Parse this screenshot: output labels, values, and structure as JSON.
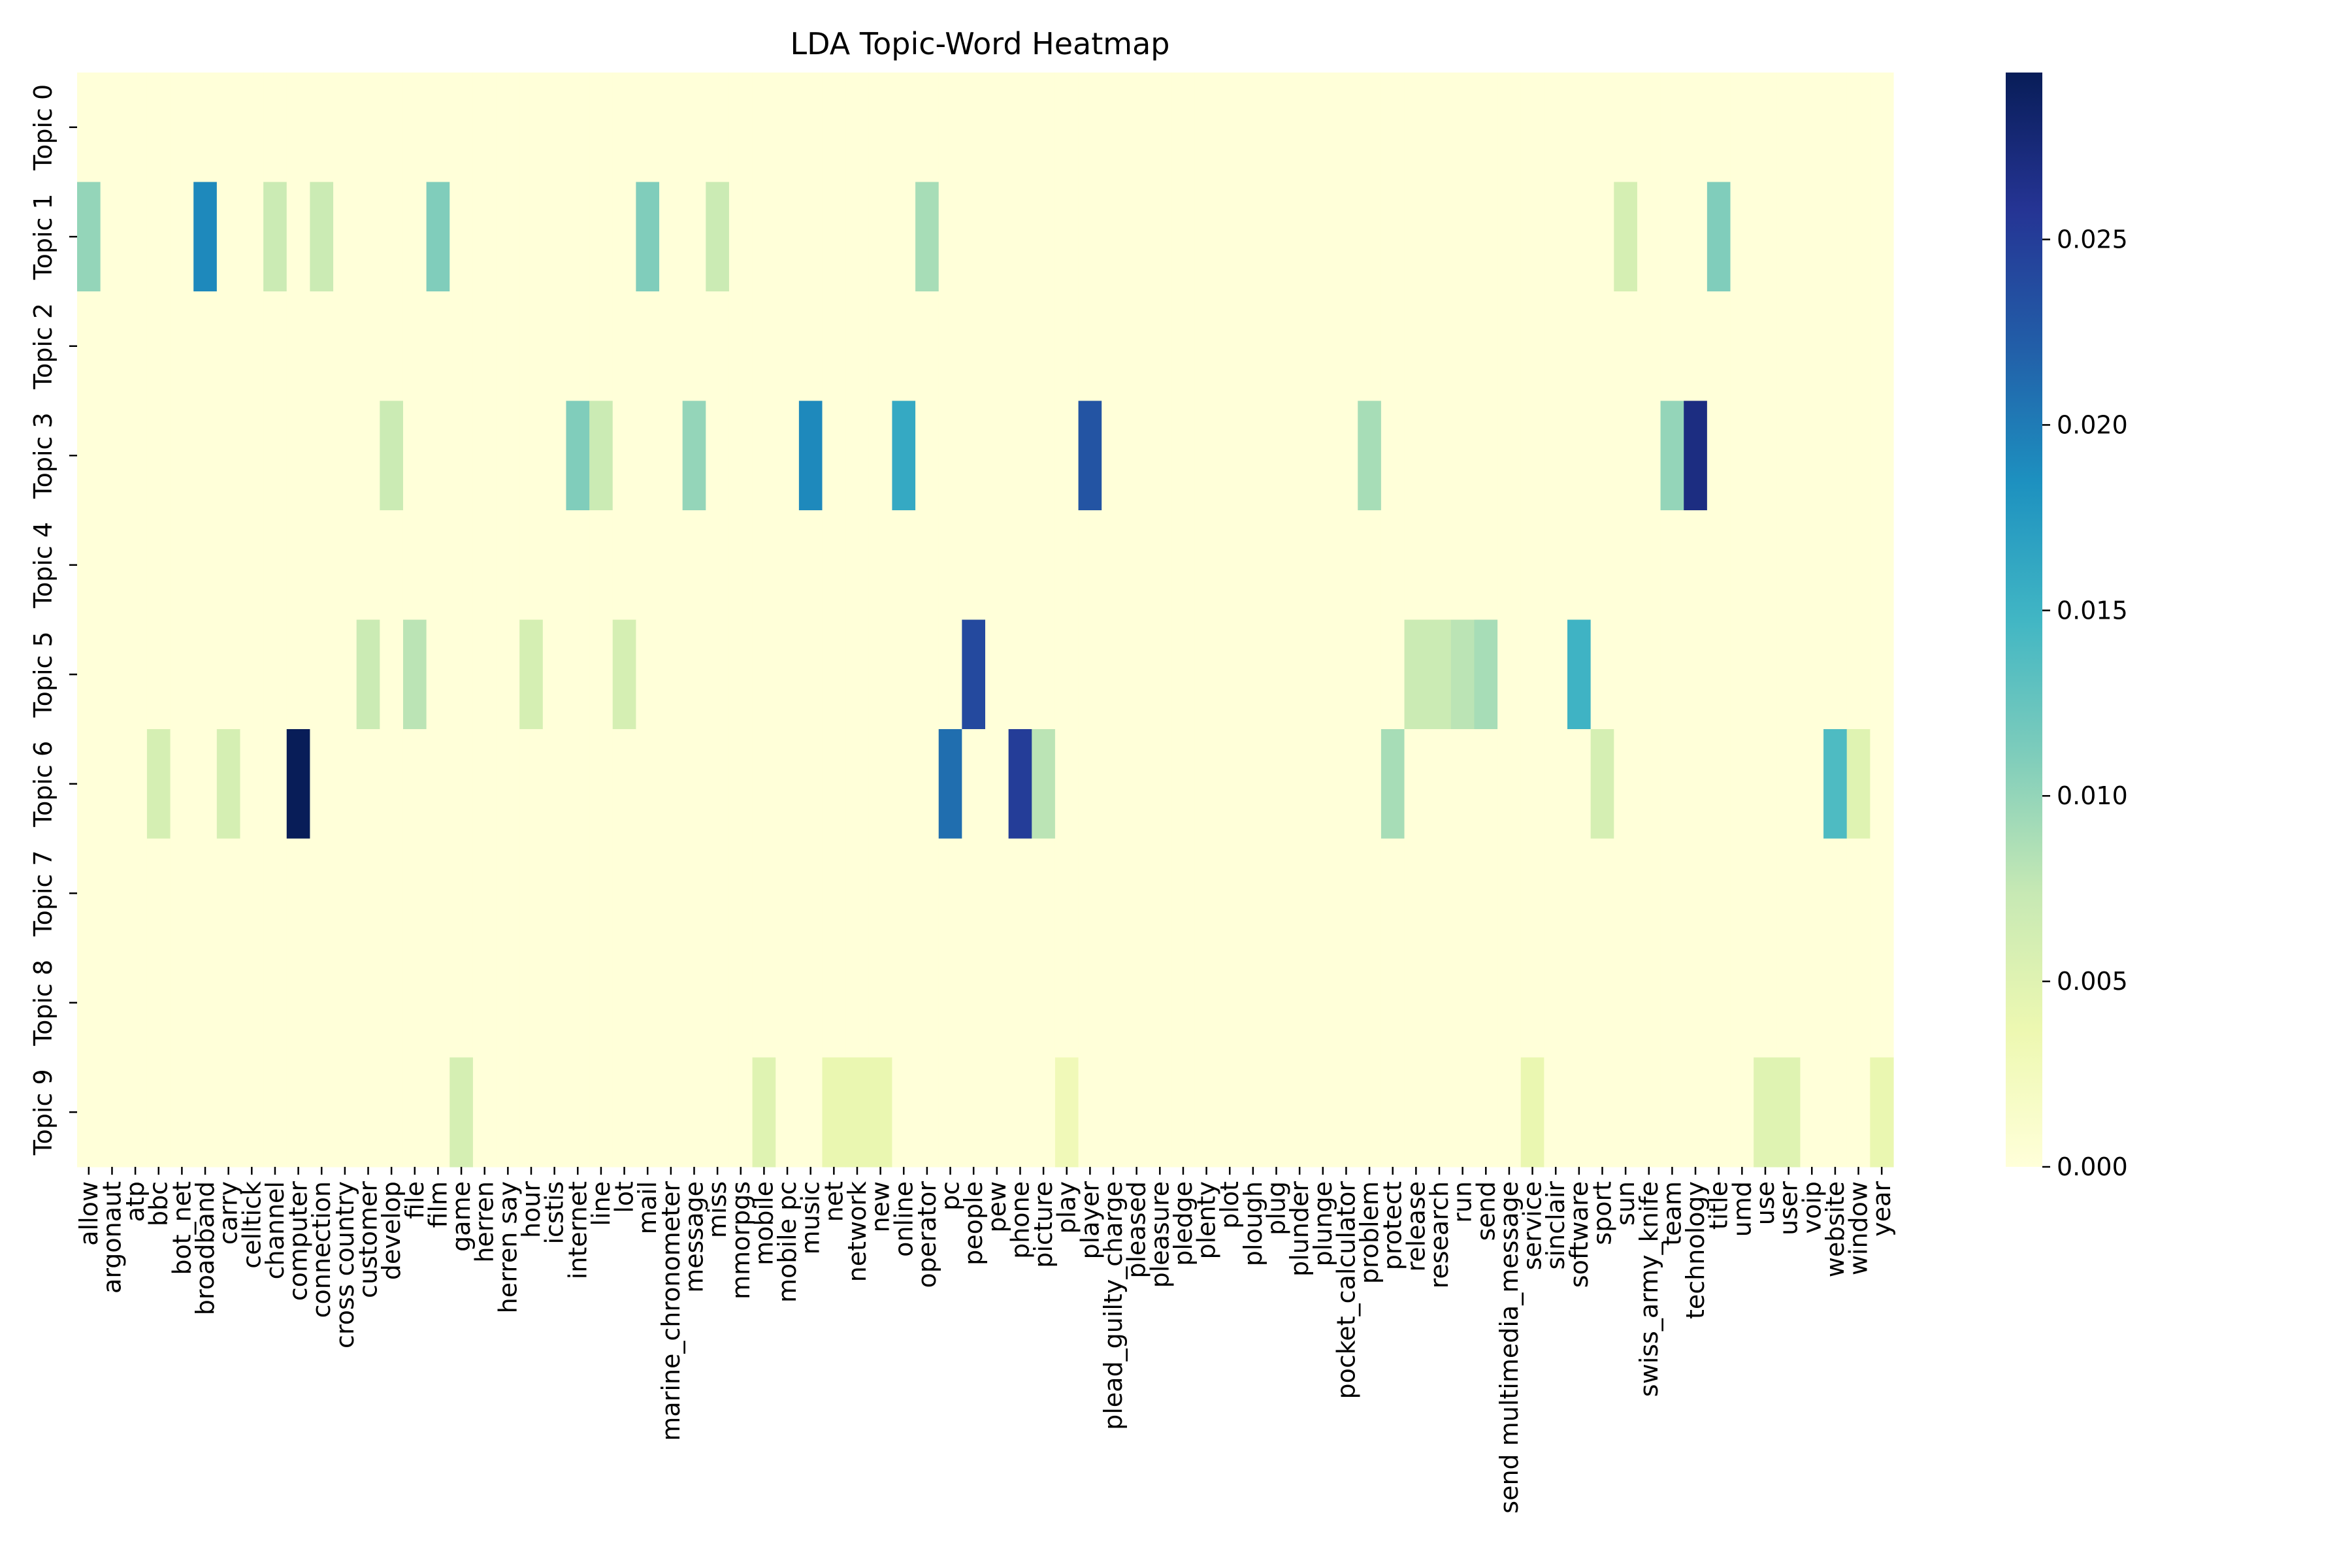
{
  "chart_data": {
    "type": "heatmap",
    "title": "LDA Topic-Word Heatmap",
    "xlabel": "",
    "ylabel": "",
    "topics": [
      "Topic 0",
      "Topic 1",
      "Topic 2",
      "Topic 3",
      "Topic 4",
      "Topic 5",
      "Topic 6",
      "Topic 7",
      "Topic 8",
      "Topic 9"
    ],
    "words": [
      "allow",
      "argonaut",
      "atp",
      "bbc",
      "bot_net",
      "broadband",
      "carry",
      "celltick",
      "channel",
      "computer",
      "connection",
      "cross country",
      "customer",
      "develop",
      "file",
      "film",
      "game",
      "herren",
      "herren say",
      "hour",
      "icstis",
      "internet",
      "line",
      "lot",
      "mail",
      "marine_chronometer",
      "message",
      "miss",
      "mmorpgs",
      "mobile",
      "mobile pc",
      "music",
      "net",
      "network",
      "new",
      "online",
      "operator",
      "pc",
      "people",
      "pew",
      "phone",
      "picture",
      "play",
      "player",
      "plead_guilty_charge",
      "pleased",
      "pleasure",
      "pledge",
      "plenty",
      "plot",
      "plough",
      "plug",
      "plunder",
      "plunge",
      "pocket_calculator",
      "problem",
      "protect",
      "release",
      "research",
      "run",
      "send",
      "send multimedia_message",
      "service",
      "sinclair",
      "software",
      "sport",
      "sun",
      "swiss_army_knife",
      "team",
      "technology",
      "title",
      "umd",
      "use",
      "user",
      "voip",
      "website",
      "window",
      "year"
    ],
    "values": [
      [
        0,
        0,
        0,
        0,
        0,
        0,
        0,
        0,
        0,
        0,
        0,
        0,
        0,
        0,
        0,
        0,
        0,
        0,
        0,
        0,
        0,
        0,
        0,
        0,
        0,
        0,
        0,
        0,
        0,
        0,
        0,
        0,
        0,
        0,
        0,
        0,
        0,
        0,
        0,
        0,
        0,
        0,
        0,
        0,
        0,
        0,
        0,
        0,
        0,
        0,
        0,
        0,
        0,
        0,
        0,
        0,
        0,
        0,
        0,
        0,
        0,
        0,
        0,
        0,
        0,
        0,
        0,
        0,
        0,
        0,
        0,
        0,
        0,
        0,
        0,
        0,
        0,
        0
      ],
      [
        0.01,
        0,
        0,
        0,
        0,
        0.019,
        0,
        0,
        0.007,
        0,
        0.007,
        0,
        0,
        0,
        0,
        0.011,
        0,
        0,
        0,
        0,
        0,
        0,
        0,
        0,
        0.011,
        0,
        0,
        0.007,
        0,
        0,
        0,
        0,
        0,
        0,
        0,
        0,
        0.009,
        0,
        0,
        0,
        0,
        0,
        0,
        0,
        0,
        0,
        0,
        0,
        0,
        0,
        0,
        0,
        0,
        0,
        0,
        0,
        0,
        0,
        0,
        0,
        0,
        0,
        0,
        0,
        0,
        0,
        0.006,
        0,
        0,
        0,
        0.011,
        0,
        0,
        0,
        0,
        0,
        0,
        0
      ],
      [
        0,
        0,
        0,
        0,
        0,
        0,
        0,
        0,
        0,
        0,
        0,
        0,
        0,
        0,
        0,
        0,
        0,
        0,
        0,
        0,
        0,
        0,
        0,
        0,
        0,
        0,
        0,
        0,
        0,
        0,
        0,
        0,
        0,
        0,
        0,
        0,
        0,
        0,
        0,
        0,
        0,
        0,
        0,
        0,
        0,
        0,
        0,
        0,
        0,
        0,
        0,
        0,
        0,
        0,
        0,
        0,
        0,
        0,
        0,
        0,
        0,
        0,
        0,
        0,
        0,
        0,
        0,
        0,
        0,
        0,
        0,
        0,
        0,
        0,
        0,
        0,
        0,
        0
      ],
      [
        0,
        0,
        0,
        0,
        0,
        0,
        0,
        0,
        0,
        0,
        0,
        0,
        0,
        0.007,
        0,
        0,
        0,
        0,
        0,
        0,
        0,
        0.011,
        0.007,
        0,
        0,
        0,
        0.01,
        0,
        0,
        0,
        0,
        0.019,
        0,
        0,
        0,
        0.016,
        0,
        0,
        0,
        0,
        0,
        0,
        0,
        0.023,
        0,
        0,
        0,
        0,
        0,
        0,
        0,
        0,
        0,
        0,
        0,
        0.009,
        0,
        0,
        0,
        0,
        0,
        0,
        0,
        0,
        0,
        0,
        0,
        0,
        0.01,
        0.027,
        0,
        0,
        0,
        0,
        0,
        0,
        0,
        0
      ],
      [
        0,
        0,
        0,
        0,
        0,
        0,
        0,
        0,
        0,
        0,
        0,
        0,
        0,
        0,
        0,
        0,
        0,
        0,
        0,
        0,
        0,
        0,
        0,
        0,
        0,
        0,
        0,
        0,
        0,
        0,
        0,
        0,
        0,
        0,
        0,
        0,
        0,
        0,
        0,
        0,
        0,
        0,
        0,
        0,
        0,
        0,
        0,
        0,
        0,
        0,
        0,
        0,
        0,
        0,
        0,
        0,
        0,
        0,
        0,
        0,
        0,
        0,
        0,
        0,
        0,
        0,
        0,
        0,
        0,
        0,
        0,
        0,
        0,
        0,
        0,
        0,
        0,
        0
      ],
      [
        0,
        0,
        0,
        0,
        0,
        0,
        0,
        0,
        0,
        0,
        0,
        0,
        0.007,
        0,
        0.008,
        0,
        0,
        0,
        0,
        0.006,
        0,
        0,
        0,
        0.006,
        0,
        0,
        0,
        0,
        0,
        0,
        0,
        0,
        0,
        0,
        0,
        0,
        0,
        0,
        0.024,
        0,
        0,
        0,
        0,
        0,
        0,
        0,
        0,
        0,
        0,
        0,
        0,
        0,
        0,
        0,
        0,
        0,
        0,
        0.007,
        0.007,
        0.008,
        0.009,
        0,
        0,
        0,
        0.015,
        0,
        0,
        0,
        0,
        0,
        0,
        0,
        0,
        0,
        0,
        0,
        0,
        0
      ],
      [
        0,
        0,
        0,
        0.006,
        0,
        0,
        0.006,
        0,
        0,
        0.03,
        0,
        0,
        0,
        0,
        0,
        0,
        0,
        0,
        0,
        0,
        0,
        0,
        0,
        0,
        0,
        0,
        0,
        0,
        0,
        0,
        0,
        0,
        0,
        0,
        0,
        0,
        0,
        0.021,
        0,
        0,
        0.025,
        0.008,
        0,
        0,
        0,
        0,
        0,
        0,
        0,
        0,
        0,
        0,
        0,
        0,
        0,
        0,
        0.009,
        0,
        0,
        0,
        0,
        0,
        0,
        0,
        0,
        0.006,
        0,
        0,
        0,
        0,
        0,
        0,
        0,
        0,
        0,
        0.014,
        0.005,
        0
      ],
      [
        0,
        0,
        0,
        0,
        0,
        0,
        0,
        0,
        0,
        0,
        0,
        0,
        0,
        0,
        0,
        0,
        0,
        0,
        0,
        0,
        0,
        0,
        0,
        0,
        0,
        0,
        0,
        0,
        0,
        0,
        0,
        0,
        0,
        0,
        0,
        0,
        0,
        0,
        0,
        0,
        0,
        0,
        0,
        0,
        0,
        0,
        0,
        0,
        0,
        0,
        0,
        0,
        0,
        0,
        0,
        0,
        0,
        0,
        0,
        0,
        0,
        0,
        0,
        0,
        0,
        0,
        0,
        0,
        0,
        0,
        0,
        0,
        0,
        0,
        0,
        0,
        0,
        0
      ],
      [
        0,
        0,
        0,
        0,
        0,
        0,
        0,
        0,
        0,
        0,
        0,
        0,
        0,
        0,
        0,
        0,
        0,
        0,
        0,
        0,
        0,
        0,
        0,
        0,
        0,
        0,
        0,
        0,
        0,
        0,
        0,
        0,
        0,
        0,
        0,
        0,
        0,
        0,
        0,
        0,
        0,
        0,
        0,
        0,
        0,
        0,
        0,
        0,
        0,
        0,
        0,
        0,
        0,
        0,
        0,
        0,
        0,
        0,
        0,
        0,
        0,
        0,
        0,
        0,
        0,
        0,
        0,
        0,
        0,
        0,
        0,
        0,
        0,
        0,
        0,
        0,
        0,
        0
      ],
      [
        0,
        0,
        0,
        0,
        0,
        0,
        0,
        0,
        0,
        0,
        0,
        0,
        0,
        0,
        0,
        0,
        0.006,
        0,
        0,
        0,
        0,
        0,
        0,
        0,
        0,
        0,
        0,
        0,
        0,
        0.005,
        0,
        0,
        0.004,
        0.004,
        0.004,
        0,
        0,
        0,
        0,
        0,
        0,
        0,
        0.003,
        0,
        0,
        0,
        0,
        0,
        0,
        0,
        0,
        0,
        0,
        0,
        0,
        0,
        0,
        0,
        0,
        0,
        0,
        0,
        0.004,
        0,
        0,
        0,
        0,
        0,
        0,
        0,
        0,
        0,
        0.005,
        0.005,
        0,
        0,
        0,
        0.004
      ]
    ],
    "colorbar": {
      "colormap": "YlGnBu",
      "range": [
        0,
        0.0295
      ],
      "ticks": [
        0,
        0.005,
        0.01,
        0.015,
        0.02,
        0.025
      ],
      "tick_labels": [
        "0.000",
        "0.005",
        "0.010",
        "0.015",
        "0.020",
        "0.025"
      ]
    },
    "grid": false,
    "legend": "colorbar-right"
  }
}
